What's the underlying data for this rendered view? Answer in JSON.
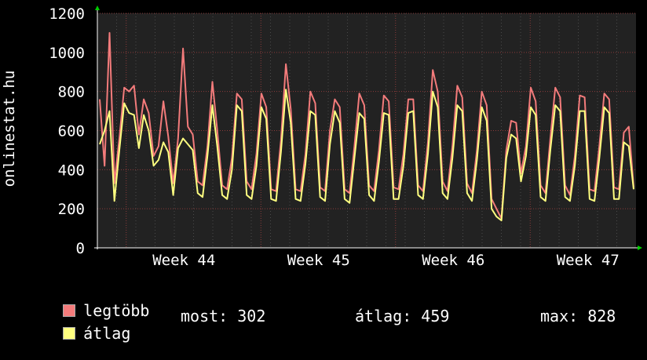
{
  "chart_data": {
    "type": "line",
    "ylabel": "onlinestat.hu",
    "ylim": [
      0,
      1200
    ],
    "yticks": [
      "0",
      "200",
      "400",
      "600",
      "800",
      "1000",
      "1200"
    ],
    "xticks": [
      "Week 44",
      "Week 45",
      "Week 46",
      "Week 47"
    ],
    "grid": true,
    "series": [
      {
        "name": "legtöbb",
        "color": "#f37b7b",
        "values": [
          760,
          420,
          1100,
          330,
          560,
          820,
          800,
          830,
          580,
          760,
          690,
          470,
          520,
          750,
          570,
          330,
          560,
          1020,
          620,
          580,
          340,
          320,
          520,
          850,
          600,
          320,
          300,
          460,
          790,
          760,
          340,
          300,
          480,
          790,
          720,
          300,
          290,
          550,
          940,
          710,
          300,
          290,
          480,
          800,
          740,
          310,
          290,
          600,
          760,
          720,
          300,
          280,
          520,
          790,
          730,
          320,
          290,
          500,
          780,
          750,
          310,
          300,
          480,
          760,
          760,
          320,
          290,
          540,
          910,
          800,
          340,
          290,
          520,
          830,
          770,
          330,
          280,
          500,
          800,
          730,
          250,
          200,
          150,
          500,
          650,
          640,
          380,
          520,
          820,
          750,
          320,
          280,
          560,
          820,
          770,
          320,
          270,
          470,
          780,
          770,
          300,
          290,
          520,
          790,
          760,
          310,
          300,
          590,
          620,
          310
        ]
      },
      {
        "name": "átlag",
        "color": "#ffff80",
        "values": [
          530,
          600,
          700,
          240,
          500,
          740,
          690,
          680,
          510,
          680,
          600,
          420,
          450,
          540,
          490,
          270,
          510,
          560,
          530,
          500,
          280,
          260,
          470,
          730,
          520,
          270,
          250,
          400,
          730,
          700,
          270,
          250,
          420,
          720,
          660,
          250,
          240,
          490,
          810,
          640,
          250,
          240,
          430,
          700,
          680,
          260,
          240,
          530,
          700,
          640,
          250,
          230,
          460,
          690,
          660,
          270,
          240,
          440,
          690,
          680,
          250,
          250,
          420,
          690,
          700,
          270,
          250,
          480,
          800,
          720,
          280,
          250,
          460,
          730,
          700,
          280,
          240,
          450,
          720,
          650,
          200,
          160,
          140,
          460,
          580,
          560,
          340,
          470,
          720,
          680,
          260,
          240,
          500,
          730,
          700,
          260,
          240,
          420,
          700,
          700,
          250,
          240,
          460,
          720,
          690,
          250,
          250,
          540,
          520,
          300
        ]
      }
    ]
  },
  "legend": [
    {
      "label": "legtöbb",
      "color": "#f37b7b"
    },
    {
      "label": "átlag",
      "color": "#ffff80"
    }
  ],
  "stats": {
    "most": "most: 302",
    "atlag": "átlag: 459",
    "max": "max: 828"
  }
}
